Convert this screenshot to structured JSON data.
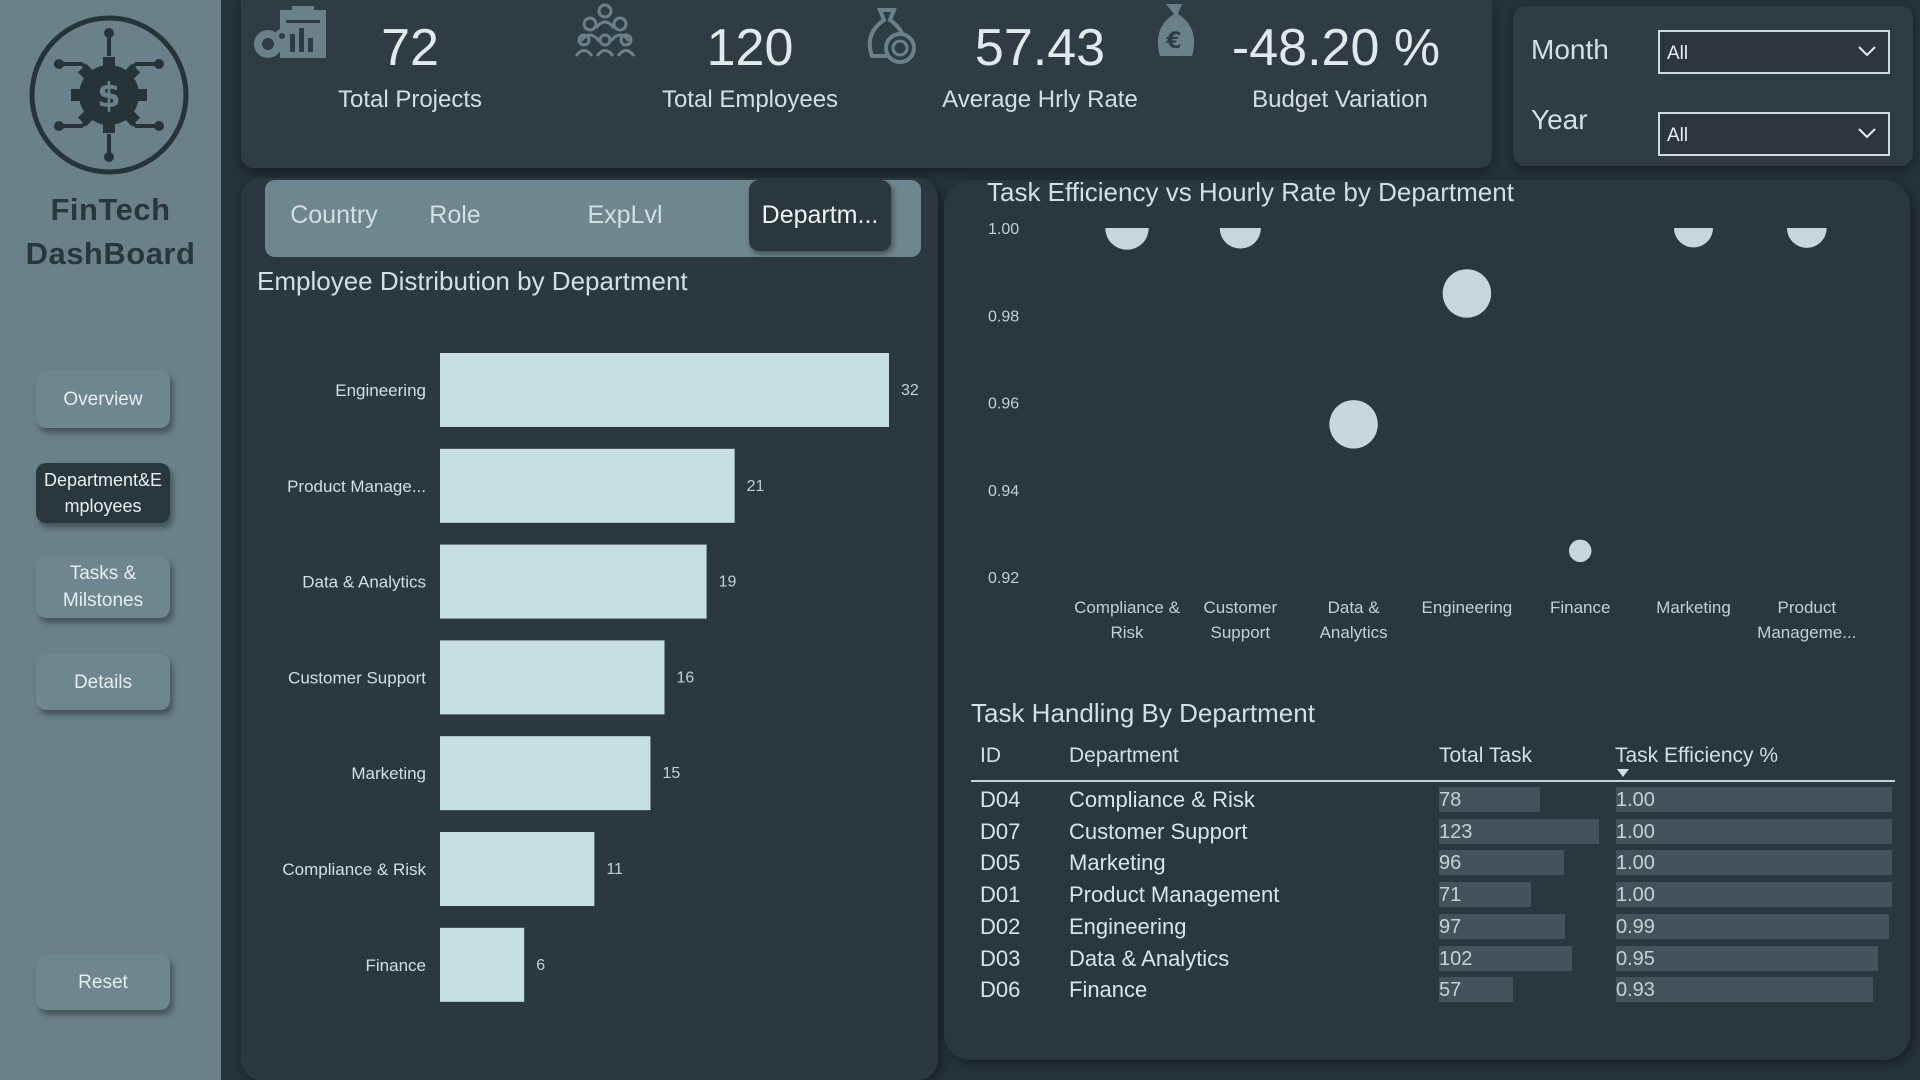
{
  "sidebar": {
    "brand_line1": "FinTech",
    "brand_line2": "DashBoard",
    "nav": [
      {
        "label": "Overview"
      },
      {
        "label": "Department&Employees"
      },
      {
        "label": "Tasks & Milstones"
      },
      {
        "label": "Details"
      },
      {
        "label": "Reset"
      }
    ],
    "logo_icon": "dollar-gear-icon"
  },
  "kpis": [
    {
      "value": "72",
      "label": "Total Projects",
      "icon": "project-report-icon"
    },
    {
      "value": "120",
      "label": "Total Employees",
      "icon": "team-people-icon"
    },
    {
      "value": "57.43",
      "label": "Average Hrly Rate",
      "icon": "money-bag-coin-icon"
    },
    {
      "value": "-48.20 %",
      "label": "Budget Variation",
      "icon": "euro-bag-icon"
    }
  ],
  "filters": {
    "month_label": "Month",
    "month_value": "All",
    "year_label": "Year",
    "year_value": "All"
  },
  "tabs": [
    {
      "label": "Country"
    },
    {
      "label": "Role"
    },
    {
      "label": "ExpLvl"
    },
    {
      "label": "Departm..."
    }
  ],
  "colors": {
    "bar": "#c6dfe3",
    "bubble": "#c6d6da",
    "sidebar": "#6a8189",
    "panel": "#2b383f"
  },
  "chart_data": [
    {
      "type": "bar",
      "title": "Employee Distribution by Department",
      "orientation": "horizontal",
      "categories": [
        "Engineering",
        "Product Manage...",
        "Data & Analytics",
        "Customer Support",
        "Marketing",
        "Compliance & Risk",
        "Finance"
      ],
      "values": [
        32,
        21,
        19,
        16,
        15,
        11,
        6
      ],
      "xlim": [
        0,
        32
      ]
    },
    {
      "type": "scatter",
      "title": "Task Efficiency vs Hourly Rate by Department",
      "categories": [
        "Compliance & Risk",
        "Customer Support",
        "Data & Analytics",
        "Engineering",
        "Finance",
        "Marketing",
        "Product Manageme..."
      ],
      "values": [
        1.0,
        1.0,
        0.955,
        0.985,
        0.926,
        1.0,
        1.0
      ],
      "ylim": [
        0.92,
        1.0
      ],
      "yticks": [
        "1.00",
        "0.98",
        "0.96",
        "0.94",
        "0.92"
      ],
      "bubble_sizes": [
        58,
        55,
        57,
        57,
        50,
        52,
        53
      ]
    }
  ],
  "table": {
    "title": "Task Handling By Department",
    "headers": {
      "id": "ID",
      "dept": "Department",
      "total": "Total Task",
      "eff": "Task Efficiency %"
    },
    "rows": [
      {
        "id": "D04",
        "dept": "Compliance & Risk",
        "total": "78",
        "total_n": 78,
        "eff": "1.00",
        "eff_n": 1.0
      },
      {
        "id": "D07",
        "dept": "Customer Support",
        "total": "123",
        "total_n": 123,
        "eff": "1.00",
        "eff_n": 1.0
      },
      {
        "id": "D05",
        "dept": "Marketing",
        "total": "96",
        "total_n": 96,
        "eff": "1.00",
        "eff_n": 1.0
      },
      {
        "id": "D01",
        "dept": "Product Management",
        "total": "71",
        "total_n": 71,
        "eff": "1.00",
        "eff_n": 1.0
      },
      {
        "id": "D02",
        "dept": "Engineering",
        "total": "97",
        "total_n": 97,
        "eff": "0.99",
        "eff_n": 0.99
      },
      {
        "id": "D03",
        "dept": "Data & Analytics",
        "total": "102",
        "total_n": 102,
        "eff": "0.95",
        "eff_n": 0.95
      },
      {
        "id": "D06",
        "dept": "Finance",
        "total": "57",
        "total_n": 57,
        "eff": "0.93",
        "eff_n": 0.93
      }
    ]
  }
}
